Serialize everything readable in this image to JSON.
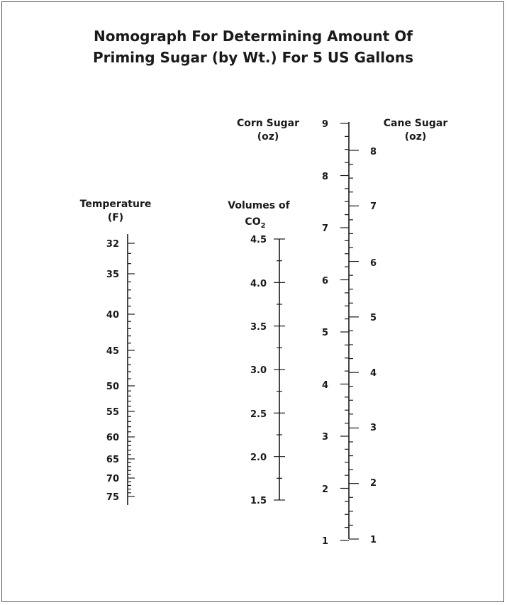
{
  "title": {
    "line1": "Nomograph For Determining Amount Of",
    "line2": "Priming Sugar (by Wt.) For 5 US Gallons"
  },
  "scales": {
    "temperature": {
      "label_line1": "Temperature",
      "label_line2": "(F)",
      "labels": [
        "32",
        "35",
        "40",
        "45",
        "50",
        "55",
        "60",
        "65",
        "70",
        "75"
      ]
    },
    "co2": {
      "label_line1": "Volumes of",
      "label_line2": "CO",
      "label_sub": "2",
      "labels": [
        "4.5",
        "4.0",
        "3.5",
        "3.0",
        "2.5",
        "2.0",
        "1.5"
      ]
    },
    "corn_sugar": {
      "label_line1": "Corn Sugar",
      "label_line2": "(oz)",
      "labels": [
        "9",
        "8",
        "7",
        "6",
        "5",
        "4",
        "3",
        "2",
        "1"
      ]
    },
    "cane_sugar": {
      "label_line1": "Cane Sugar",
      "label_line2": "(oz)",
      "labels": [
        "8",
        "7",
        "6",
        "5",
        "4",
        "3",
        "2",
        "1"
      ]
    }
  }
}
